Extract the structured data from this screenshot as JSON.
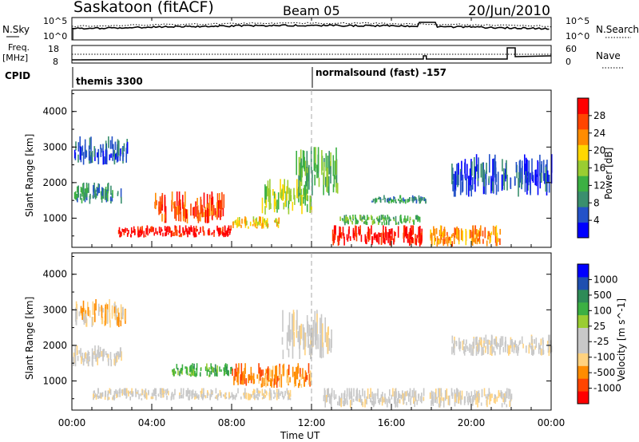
{
  "header": {
    "station": "Saskatoon (fitACF)",
    "beam": "Beam 05",
    "date": "20/Jun/2010"
  },
  "panels": {
    "nsky": {
      "label": "N.Sky",
      "ticks_left": [
        "10^5",
        "10^0"
      ],
      "ticks_right": [
        "10^5",
        "10^0"
      ],
      "right_label": "N.Search"
    },
    "freq": {
      "label_line1": "Freq.",
      "label_line2": "[MHz]",
      "ticks_left": [
        "18",
        "8"
      ],
      "ticks_right": [
        "60",
        "0"
      ],
      "right_label": "Nave"
    },
    "cpid": {
      "label": "CPID",
      "seg1": "themis 3300",
      "seg2": "normalsound (fast) -157"
    }
  },
  "colors": {
    "power": [
      "#0000ff",
      "#2452c8",
      "#3a8f6e",
      "#3cb043",
      "#9acd32",
      "#ffd700",
      "#ff8c00",
      "#ff4500",
      "#ff0000"
    ],
    "velocity": [
      "#ff0000",
      "#ff4500",
      "#ff8c00",
      "#ffd27f",
      "#c8c8c8",
      "#c8c8c8",
      "#9acd32",
      "#3cb043",
      "#2e8b57",
      "#1f4fb0",
      "#0000ff"
    ],
    "ground": "#bebebe"
  },
  "chart_data": [
    {
      "type": "heatmap",
      "title": "",
      "xlabel": "Time UT",
      "ylabel": "Slant Range [km]",
      "x_ticks": [
        "00:00",
        "04:00",
        "08:00",
        "12:00",
        "16:00",
        "20:00",
        "00:00"
      ],
      "y_ticks": [
        "1000",
        "2000",
        "3000",
        "4000"
      ],
      "ylim": [
        180,
        4600
      ],
      "xlim_hours": [
        0,
        24
      ],
      "colorbar": {
        "label": "Power [dB]",
        "ticks": [
          "4",
          "8",
          "12",
          "16",
          "20",
          "24",
          "28"
        ],
        "range": [
          0,
          30
        ]
      },
      "regions": [
        {
          "t0": 0.0,
          "t1": 2.5,
          "r0": 1400,
          "r1": 2000,
          "level": 2
        },
        {
          "t0": 0.1,
          "t1": 2.8,
          "r0": 2500,
          "r1": 3300,
          "level": 1
        },
        {
          "t0": 2.3,
          "t1": 8.0,
          "r0": 450,
          "r1": 800,
          "level": 8
        },
        {
          "t0": 4.0,
          "t1": 7.6,
          "r0": 850,
          "r1": 1750,
          "level": 7
        },
        {
          "t0": 8.0,
          "t1": 10.4,
          "r0": 700,
          "r1": 1050,
          "level": 5
        },
        {
          "t0": 9.5,
          "t1": 12.0,
          "r0": 1100,
          "r1": 2100,
          "level": 4
        },
        {
          "t0": 11.2,
          "t1": 13.3,
          "r0": 1600,
          "r1": 3000,
          "level": 3
        },
        {
          "t0": 13.0,
          "t1": 17.6,
          "r0": 200,
          "r1": 800,
          "level": 8
        },
        {
          "t0": 13.4,
          "t1": 17.5,
          "r0": 800,
          "r1": 1100,
          "level": 3
        },
        {
          "t0": 15.0,
          "t1": 17.7,
          "r0": 1400,
          "r1": 1650,
          "level": 2
        },
        {
          "t0": 17.9,
          "t1": 21.5,
          "r0": 200,
          "r1": 800,
          "level": 6
        },
        {
          "t0": 19.0,
          "t1": 24.0,
          "r0": 1600,
          "r1": 2800,
          "level": 1
        }
      ]
    },
    {
      "type": "heatmap",
      "title": "",
      "xlabel": "Time UT",
      "ylabel": "Slant Range [km]",
      "x_ticks": [
        "00:00",
        "04:00",
        "08:00",
        "12:00",
        "16:00",
        "20:00",
        "00:00"
      ],
      "y_ticks": [
        "1000",
        "2000",
        "3000",
        "4000"
      ],
      "ylim": [
        180,
        4600
      ],
      "xlim_hours": [
        0,
        24
      ],
      "colorbar": {
        "label": "Velocity [m s^-1]",
        "ticks": [
          "1000",
          "500",
          "100",
          "25",
          "-25",
          "-100",
          "-500",
          "-1000"
        ]
      },
      "regions": [
        {
          "t0": 0.0,
          "t1": 2.5,
          "r0": 1400,
          "r1": 2000,
          "level": 4
        },
        {
          "t0": 0.1,
          "t1": 2.8,
          "r0": 2500,
          "r1": 3300,
          "level": 3
        },
        {
          "t0": 1.0,
          "t1": 11.0,
          "r0": 450,
          "r1": 800,
          "level": 4
        },
        {
          "t0": 5.0,
          "t1": 8.0,
          "r0": 1100,
          "r1": 1500,
          "level": 7
        },
        {
          "t0": 8.0,
          "t1": 12.0,
          "r0": 800,
          "r1": 1500,
          "level": 2
        },
        {
          "t0": 10.5,
          "t1": 13.0,
          "r0": 1600,
          "r1": 3000,
          "level": 4
        },
        {
          "t0": 12.5,
          "t1": 17.6,
          "r0": 250,
          "r1": 800,
          "level": 4
        },
        {
          "t0": 17.9,
          "t1": 22.0,
          "r0": 250,
          "r1": 800,
          "level": 4
        },
        {
          "t0": 19.0,
          "t1": 24.0,
          "r0": 1700,
          "r1": 2300,
          "level": 4
        }
      ]
    }
  ]
}
